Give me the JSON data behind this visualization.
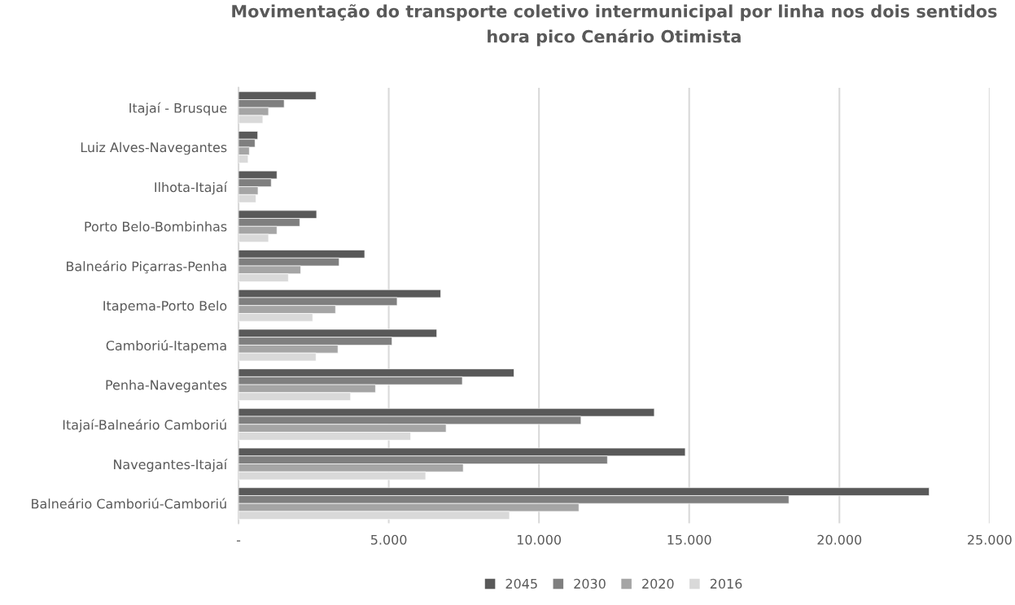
{
  "chart_data": {
    "type": "bar",
    "orientation": "horizontal",
    "title": "Movimentação do transporte coletivo intermunicipal por linha nos dois sentidos\nhora pico Cenário Otimista",
    "categories": [
      "Itajaí - Brusque",
      "Luiz Alves-Navegantes",
      "Ilhota-Itajaí",
      "Porto Belo-Bombinhas",
      "Balneário Piçarras-Penha",
      "Itapema-Porto Belo",
      "Camboriú-Itapema",
      "Penha-Navegantes",
      "Itajaí-Balneário Camboriú",
      "Navegantes-Itajaí",
      "Balneário Camboriú-Camboriú"
    ],
    "series": [
      {
        "name": "2045",
        "color": "#595959",
        "values": [
          2580,
          640,
          1280,
          2600,
          4200,
          6730,
          6600,
          9170,
          13840,
          14870,
          22990
        ]
      },
      {
        "name": "2030",
        "color": "#7f7f7f",
        "values": [
          1520,
          550,
          1090,
          2040,
          3350,
          5280,
          5110,
          7450,
          11400,
          12280,
          18320
        ]
      },
      {
        "name": "2020",
        "color": "#a5a5a5",
        "values": [
          1000,
          360,
          650,
          1280,
          2070,
          3230,
          3310,
          4560,
          6910,
          7480,
          11330
        ]
      },
      {
        "name": "2016",
        "color": "#d9d9d9",
        "values": [
          810,
          320,
          580,
          1000,
          1660,
          2470,
          2580,
          3730,
          5730,
          6230,
          9020
        ]
      }
    ],
    "xlim": [
      0,
      25000
    ],
    "xticks": [
      {
        "value": 0,
        "label": "-"
      },
      {
        "value": 5000,
        "label": "5.000"
      },
      {
        "value": 10000,
        "label": "10.000"
      },
      {
        "value": 15000,
        "label": "15.000"
      },
      {
        "value": 20000,
        "label": "20.000"
      },
      {
        "value": 25000,
        "label": "25.000"
      }
    ],
    "grid": "x",
    "legend": "bottom"
  }
}
